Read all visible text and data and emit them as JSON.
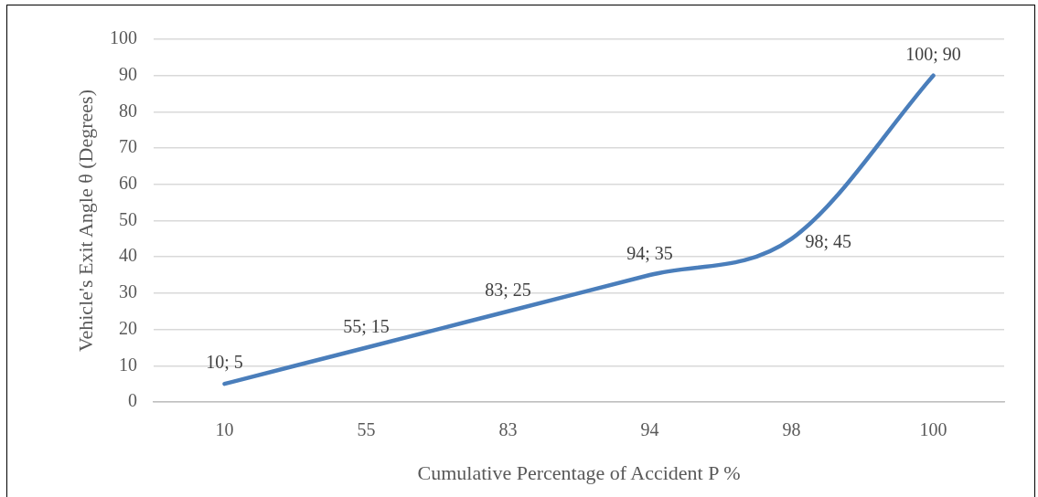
{
  "chart_data": {
    "type": "line",
    "xlabel": "Cumulative Percentage of Accident P %",
    "ylabel": "Vehicle's Exit Angle θ (Degrees)",
    "categories": [
      "10",
      "55",
      "83",
      "94",
      "98",
      "100"
    ],
    "values": [
      5,
      15,
      25,
      35,
      45,
      90
    ],
    "color": "#4a7ebb",
    "value_labels": [
      "10; 5",
      "55; 15",
      "83; 25",
      "94; 35",
      "98; 45",
      "100; 90"
    ],
    "ylim": [
      0,
      100
    ],
    "yticks": [
      0,
      10,
      20,
      30,
      40,
      50,
      60,
      70,
      80,
      90,
      100
    ],
    "grid": "y",
    "legend": false,
    "marker": "none",
    "line_style": "solid"
  }
}
